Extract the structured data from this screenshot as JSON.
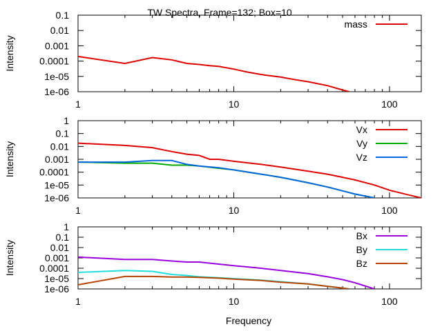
{
  "title": "TW Spectra, Frame=132; Box=10",
  "chart_data": [
    {
      "type": "line",
      "xscale": "log",
      "yscale": "log",
      "xlim": [
        1,
        160
      ],
      "ylim": [
        1e-06,
        0.1
      ],
      "xticks": [
        1,
        10,
        100
      ],
      "xtick_labels": [
        "1",
        "10",
        "100"
      ],
      "yticks": [
        1e-06,
        1e-05,
        0.0001,
        0.001,
        0.01,
        0.1
      ],
      "ytick_labels": [
        "1e-06",
        "1e-05",
        "0.0001",
        "0.001",
        "0.01",
        "0.1"
      ],
      "xlabel": "",
      "ylabel": "Intensity",
      "legend_position": "top-right",
      "series": [
        {
          "name": "mass",
          "color": "#dd0000",
          "x": [
            1,
            2,
            3,
            4,
            5,
            6,
            7,
            8,
            10,
            12,
            14,
            16,
            20,
            25,
            30,
            40,
            50,
            55
          ],
          "y": [
            0.0002,
            7e-05,
            0.00017,
            0.00012,
            7e-05,
            6e-05,
            5e-05,
            4.5e-05,
            3e-05,
            2e-05,
            1.5e-05,
            1.2e-05,
            9e-06,
            6e-06,
            4.5e-06,
            2.5e-06,
            1.3e-06,
            1e-06
          ]
        }
      ]
    },
    {
      "type": "line",
      "xscale": "log",
      "yscale": "log",
      "xlim": [
        1,
        160
      ],
      "ylim": [
        1e-06,
        1
      ],
      "xticks": [
        1,
        10,
        100
      ],
      "xtick_labels": [
        "1",
        "10",
        "100"
      ],
      "yticks": [
        1e-06,
        1e-05,
        0.0001,
        0.001,
        0.01,
        0.1,
        1
      ],
      "ytick_labels": [
        "1e-06",
        "1e-05",
        "0.0001",
        "0.001",
        "0.01",
        "0.1",
        "1"
      ],
      "xlabel": "",
      "ylabel": "Intensity",
      "legend_position": "top-right",
      "series": [
        {
          "name": "Vx",
          "color": "#dd0000",
          "x": [
            1,
            2,
            3,
            4,
            5,
            6,
            7,
            8,
            10,
            15,
            20,
            30,
            40,
            50,
            60,
            80,
            100,
            130,
            160
          ],
          "y": [
            0.018,
            0.012,
            0.008,
            0.004,
            0.0025,
            0.002,
            0.001,
            0.001,
            0.0007,
            0.0004,
            0.00025,
            0.00012,
            7e-05,
            4e-05,
            2.5e-05,
            1e-05,
            4e-06,
            1.8e-06,
            1e-06
          ]
        },
        {
          "name": "Vy",
          "color": "#00aa00",
          "x": [
            1,
            2,
            3,
            4,
            5,
            6,
            8,
            10,
            15,
            20,
            30,
            40,
            50,
            60,
            80
          ],
          "y": [
            0.0006,
            0.0005,
            0.0005,
            0.00035,
            0.00035,
            0.0003,
            0.0002,
            0.00015,
            7e-05,
            4e-05,
            1.5e-05,
            7e-06,
            3.5e-06,
            2e-06,
            1e-06
          ]
        },
        {
          "name": "Vz",
          "color": "#0066dd",
          "x": [
            1,
            2,
            3,
            4,
            5,
            6,
            8,
            10,
            15,
            20,
            30,
            40,
            50,
            60,
            80
          ],
          "y": [
            0.0006,
            0.0006,
            0.0008,
            0.0008,
            0.0004,
            0.0003,
            0.00022,
            0.00015,
            7e-05,
            4e-05,
            1.5e-05,
            7e-06,
            3.5e-06,
            2e-06,
            1e-06
          ]
        }
      ]
    },
    {
      "type": "line",
      "xscale": "log",
      "yscale": "log",
      "xlim": [
        1,
        160
      ],
      "ylim": [
        1e-06,
        1
      ],
      "xticks": [
        1,
        10,
        100
      ],
      "xtick_labels": [
        "1",
        "10",
        "100"
      ],
      "yticks": [
        1e-06,
        1e-05,
        0.0001,
        0.001,
        0.01,
        0.1,
        1
      ],
      "ytick_labels": [
        "1e-06",
        "1e-05",
        "0.0001",
        "0.001",
        "0.01",
        "0.1",
        "1"
      ],
      "xlabel": "Frequency",
      "ylabel": "Intensity",
      "legend_position": "top-right",
      "series": [
        {
          "name": "Bx",
          "color": "#9900dd",
          "x": [
            1,
            2,
            3,
            4,
            5,
            6,
            8,
            10,
            15,
            20,
            30,
            40,
            50,
            60,
            80
          ],
          "y": [
            0.0012,
            0.0007,
            0.0007,
            0.0005,
            0.0004,
            0.0004,
            0.00025,
            0.00018,
            0.0001,
            6e-05,
            3e-05,
            1.5e-05,
            8e-06,
            4e-06,
            1e-06
          ]
        },
        {
          "name": "By",
          "color": "#22dddd",
          "x": [
            1,
            2,
            3,
            4,
            5,
            6,
            8,
            10,
            15,
            20,
            30,
            40,
            50,
            55
          ],
          "y": [
            4e-05,
            6e-05,
            5e-05,
            2.5e-05,
            2e-05,
            1.5e-05,
            1.2e-05,
            1e-05,
            7e-06,
            5e-06,
            3e-06,
            1.8e-06,
            1.2e-06,
            1e-06
          ]
        },
        {
          "name": "Bz",
          "color": "#b44400",
          "x": [
            1,
            2,
            3,
            4,
            5,
            6,
            8,
            10,
            15,
            20,
            30,
            40,
            50,
            55
          ],
          "y": [
            2.5e-06,
            1.6e-05,
            1.6e-05,
            1.4e-05,
            1.4e-05,
            1.3e-05,
            1.1e-05,
            9e-06,
            6.5e-06,
            4.5e-06,
            3e-06,
            1.8e-06,
            1.2e-06,
            1e-06
          ]
        }
      ]
    }
  ]
}
